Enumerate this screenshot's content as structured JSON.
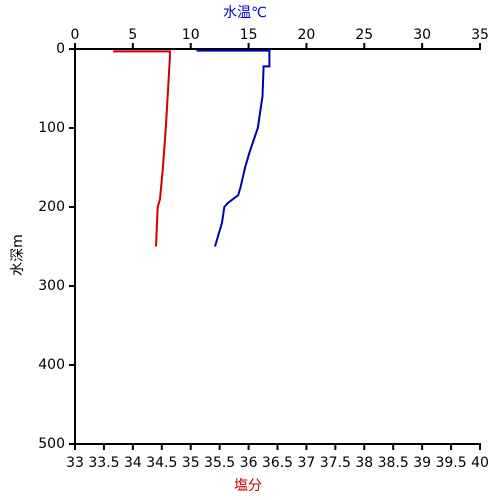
{
  "chart_data": {
    "type": "line",
    "title_x2": "水温℃",
    "title_x": "塩分",
    "title_y": "水深m",
    "x2lim": [
      0,
      35
    ],
    "x2ticks": [
      0,
      5,
      10,
      15,
      20,
      25,
      30,
      35
    ],
    "x2_color": "#0000cc",
    "xlim": [
      33,
      40
    ],
    "xticks": [
      33,
      33.5,
      34,
      34.5,
      35,
      35.5,
      36,
      36.5,
      37,
      37.5,
      38,
      38.5,
      39,
      39.5,
      40
    ],
    "x_color": "#cc0000",
    "ylim": [
      0,
      500
    ],
    "yticks": [
      0,
      100,
      200,
      300,
      400,
      500
    ],
    "y_inverted": true,
    "series": [
      {
        "color": "#0000aa",
        "axis": "x2",
        "x": [
          10.5,
          16.8,
          16.8,
          16.3,
          16.2,
          16.0,
          15.8,
          15.1,
          14.7,
          14.3,
          14.1,
          13.2,
          12.9,
          12.7,
          12.4,
          12.1
        ],
        "y": [
          2,
          2,
          22,
          22,
          60,
          80,
          100,
          130,
          150,
          175,
          185,
          195,
          200,
          220,
          235,
          250
        ]
      },
      {
        "color": "#cc0000",
        "axis": "x",
        "x": [
          33.66,
          34.64,
          34.64,
          34.61,
          34.57,
          34.52,
          34.47,
          34.43,
          34.4
        ],
        "y": [
          3,
          3,
          10,
          50,
          100,
          150,
          190,
          200,
          250
        ]
      }
    ]
  }
}
